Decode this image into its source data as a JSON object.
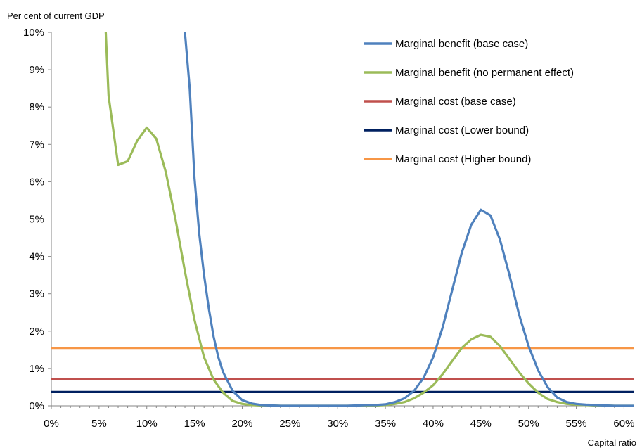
{
  "chart_data": {
    "type": "line",
    "ylabel": "Per cent of current GDP",
    "xlabel": "Capital ratio",
    "xlim": [
      0,
      61
    ],
    "ylim": [
      0,
      10
    ],
    "x_ticks": [
      0,
      5,
      10,
      15,
      20,
      25,
      30,
      35,
      40,
      45,
      50,
      55,
      60
    ],
    "x_tick_labels": [
      "0%",
      "5%",
      "10%",
      "15%",
      "20%",
      "25%",
      "30%",
      "35%",
      "40%",
      "45%",
      "50%",
      "55%",
      "60%"
    ],
    "y_ticks": [
      0,
      1,
      2,
      3,
      4,
      5,
      6,
      7,
      8,
      9,
      10
    ],
    "y_tick_labels": [
      "0%",
      "1%",
      "2%",
      "3%",
      "4%",
      "5%",
      "6%",
      "7%",
      "8%",
      "9%",
      "10%"
    ],
    "grid": false,
    "legend_position": "top-right",
    "series": [
      {
        "name": "Marginal benefit (base case)",
        "color": "#4F81BD",
        "x": [
          14,
          14.5,
          15,
          15.5,
          16,
          16.5,
          17,
          17.5,
          18,
          19,
          20,
          21,
          22,
          23,
          24,
          25,
          26,
          27,
          28,
          29,
          30,
          31,
          32,
          33,
          34,
          35,
          36,
          37,
          38,
          39,
          40,
          41,
          42,
          43,
          44,
          45,
          46,
          47,
          48,
          49,
          50,
          51,
          52,
          53,
          54,
          55,
          56,
          57,
          58,
          59,
          60,
          61
        ],
        "y": [
          10,
          8.5,
          6.1,
          4.6,
          3.5,
          2.6,
          1.85,
          1.3,
          0.9,
          0.4,
          0.15,
          0.06,
          0.02,
          0.01,
          0,
          0,
          0,
          0,
          0,
          0,
          0,
          0,
          0.01,
          0.02,
          0.02,
          0.04,
          0.1,
          0.2,
          0.4,
          0.75,
          1.3,
          2.1,
          3.1,
          4.1,
          4.85,
          5.25,
          5.1,
          4.45,
          3.5,
          2.45,
          1.6,
          0.95,
          0.5,
          0.22,
          0.1,
          0.05,
          0.03,
          0.02,
          0.01,
          0,
          0,
          0
        ]
      },
      {
        "name": "Marginal benefit (no permanent effect)",
        "color": "#9BBB59",
        "x": [
          5.7,
          6,
          7,
          8,
          9,
          10,
          11,
          12,
          13,
          14,
          15,
          16,
          17,
          18,
          19,
          20,
          21,
          22,
          23,
          24,
          25,
          26,
          27,
          28,
          29,
          30,
          31,
          32,
          33,
          34,
          35,
          36,
          37,
          38,
          39,
          40,
          41,
          42,
          43,
          44,
          45,
          46,
          47,
          48,
          49,
          50,
          51,
          52,
          53,
          54,
          55,
          56,
          57,
          58,
          59,
          60,
          61
        ],
        "y": [
          10,
          8.3,
          6.45,
          6.55,
          7.1,
          7.45,
          7.15,
          6.25,
          5.0,
          3.6,
          2.3,
          1.3,
          0.7,
          0.35,
          0.13,
          0.05,
          0.02,
          0.01,
          0.01,
          0,
          0,
          0,
          0,
          0,
          0,
          0,
          0,
          0,
          0.01,
          0.01,
          0.02,
          0.05,
          0.1,
          0.2,
          0.35,
          0.55,
          0.85,
          1.2,
          1.55,
          1.78,
          1.9,
          1.85,
          1.6,
          1.25,
          0.9,
          0.6,
          0.35,
          0.18,
          0.1,
          0.05,
          0.03,
          0.02,
          0.01,
          0.01,
          0,
          0,
          0
        ]
      },
      {
        "name": "Marginal cost (base case)",
        "color": "#C0504D",
        "x": [
          0,
          61
        ],
        "y": [
          0.72,
          0.72
        ]
      },
      {
        "name": "Marginal cost (Lower bound)",
        "color": "#002060",
        "x": [
          0,
          61
        ],
        "y": [
          0.37,
          0.37
        ]
      },
      {
        "name": "Marginal cost (Higher bound)",
        "color": "#F79646",
        "x": [
          0,
          61
        ],
        "y": [
          1.55,
          1.55
        ]
      }
    ]
  }
}
